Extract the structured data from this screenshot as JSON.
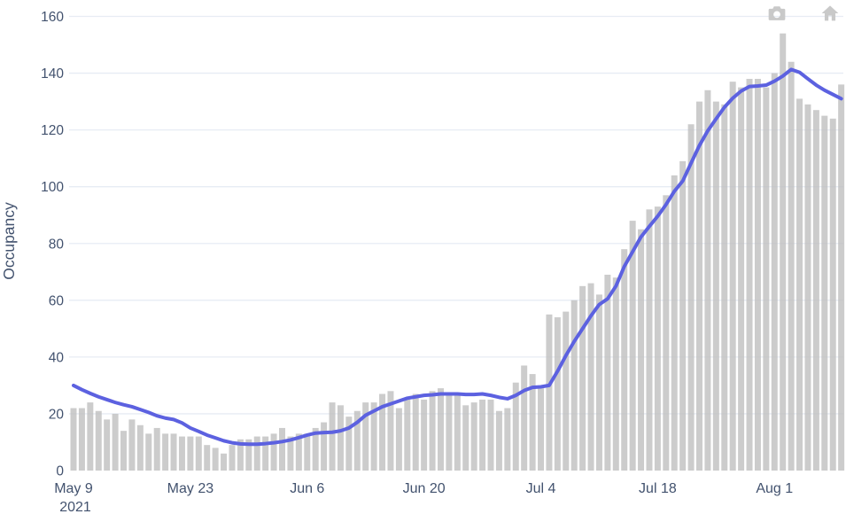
{
  "figure": {
    "modebar": {
      "buttons": [
        {
          "id": "download-plot-png",
          "icon": "camera"
        },
        {
          "id": "reset-axes",
          "icon": "home"
        }
      ]
    }
  },
  "chart_data": {
    "type": "bar",
    "title": "",
    "xlabel": "",
    "ylabel": "Occupancy",
    "ylim": [
      0,
      160
    ],
    "y_ticks": [
      0,
      20,
      40,
      60,
      80,
      100,
      120,
      140,
      160
    ],
    "grid": true,
    "legend_position": "none",
    "x_axis": {
      "start_label": "May 9",
      "year_label": "2021",
      "interval": "daily",
      "tick_labels": [
        "May 9",
        "May 23",
        "Jun 6",
        "Jun 20",
        "Jul 4",
        "Jul 18",
        "Aug 1"
      ],
      "tick_day_offsets": [
        0,
        14,
        28,
        42,
        56,
        70,
        84
      ]
    },
    "series": [
      {
        "name": "occupancy-bars",
        "type": "bar",
        "color": "#bfbfbf",
        "values": [
          22,
          22,
          24,
          21,
          18,
          20,
          14,
          18,
          16,
          13,
          15,
          13,
          13,
          12,
          12,
          12,
          9,
          8,
          6,
          9,
          11,
          11,
          12,
          12,
          13,
          15,
          12,
          13,
          13,
          15,
          17,
          24,
          23,
          19,
          21,
          24,
          24,
          27,
          28,
          22,
          25,
          27,
          25,
          28,
          29,
          27,
          27,
          23,
          24,
          25,
          25,
          21,
          22,
          31,
          37,
          34,
          29,
          55,
          54,
          56,
          60,
          65,
          66,
          62,
          69,
          68,
          78,
          88,
          85,
          92,
          93,
          97,
          104,
          109,
          122,
          130,
          134,
          130,
          129,
          137,
          135,
          138,
          138,
          135,
          140,
          154,
          144,
          131,
          129,
          127,
          125,
          124,
          136
        ]
      },
      {
        "name": "trend-line",
        "type": "line",
        "color": "#5c61e0",
        "values": [
          30,
          28.5,
          27.2,
          26,
          25,
          24,
          23.2,
          22.5,
          21.5,
          20.5,
          19.3,
          18.5,
          18,
          16.8,
          15,
          13.8,
          12.5,
          11.5,
          10.5,
          9.8,
          9.4,
          9.3,
          9.3,
          9.5,
          9.8,
          10.2,
          10.8,
          11.6,
          12.5,
          13.2,
          13.4,
          13.5,
          14,
          15,
          17,
          19.5,
          21,
          22.5,
          23.5,
          24.5,
          25.5,
          26,
          26.5,
          26.7,
          27,
          27,
          27,
          26.8,
          26.8,
          27,
          26.5,
          25.8,
          25.3,
          26.5,
          28.2,
          29.3,
          29.5,
          30,
          35,
          40.5,
          45.5,
          50,
          54.5,
          58.5,
          60.5,
          65,
          71.9,
          77.1,
          82.3,
          86,
          89.6,
          93.7,
          98.4,
          102,
          108.3,
          114.5,
          119.7,
          123.9,
          128,
          131.2,
          133.7,
          135.3,
          135.5,
          135.8,
          137.2,
          139,
          141.3,
          140.3,
          138,
          135.8,
          134,
          132.5,
          131
        ]
      }
    ],
    "colors": {
      "grid": "#e7ecf4",
      "tick_text": "#42526e",
      "modebar_icon": "#c9c9c9",
      "background": "#ffffff"
    }
  }
}
